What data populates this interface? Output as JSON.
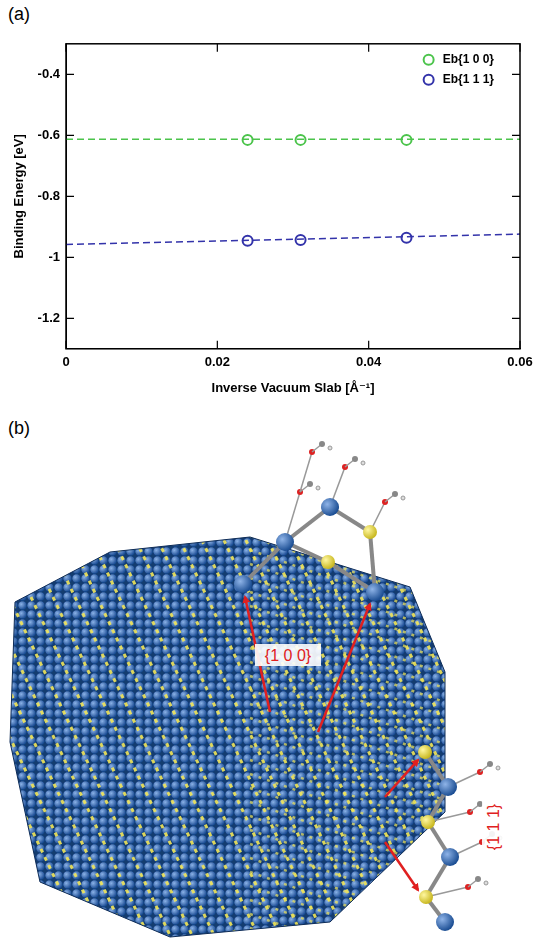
{
  "chart_data": {
    "type": "scatter",
    "panel_label": "(a)",
    "x_label": "Inverse Vacuum Slab [Å⁻¹]",
    "y_label": "Binding Energy [eV]",
    "xlim": [
      0,
      0.06
    ],
    "xticks": [
      0,
      0.02,
      0.04,
      0.06
    ],
    "ylim": [
      -1.3,
      -0.3
    ],
    "yticks": [
      -1.2,
      -1,
      -0.8,
      -0.6,
      -0.4
    ],
    "grid": false,
    "legend": "upper right",
    "series": [
      {
        "name": "Eb{1 0 0}",
        "color": "#4cc44c",
        "marker": "open_circle",
        "x": [
          0.024,
          0.031,
          0.045
        ],
        "values": [
          -0.615,
          -0.615,
          -0.615
        ],
        "fit": {
          "line_style": "dashed",
          "x": [
            0,
            0.06
          ],
          "values": [
            -0.613,
            -0.613
          ]
        }
      },
      {
        "name": "Eb{1 1 1}",
        "color": "#3333aa",
        "marker": "open_circle",
        "x": [
          0.024,
          0.031,
          0.045
        ],
        "values": [
          -0.946,
          -0.943,
          -0.936
        ],
        "fit": {
          "line_style": "dashed",
          "x": [
            0,
            0.06
          ],
          "values": [
            -0.958,
            -0.924
          ]
        }
      }
    ]
  },
  "diagram": {
    "panel_label": "(b)",
    "facets": [
      "{1 0 0}",
      "{1 1 1}"
    ]
  }
}
